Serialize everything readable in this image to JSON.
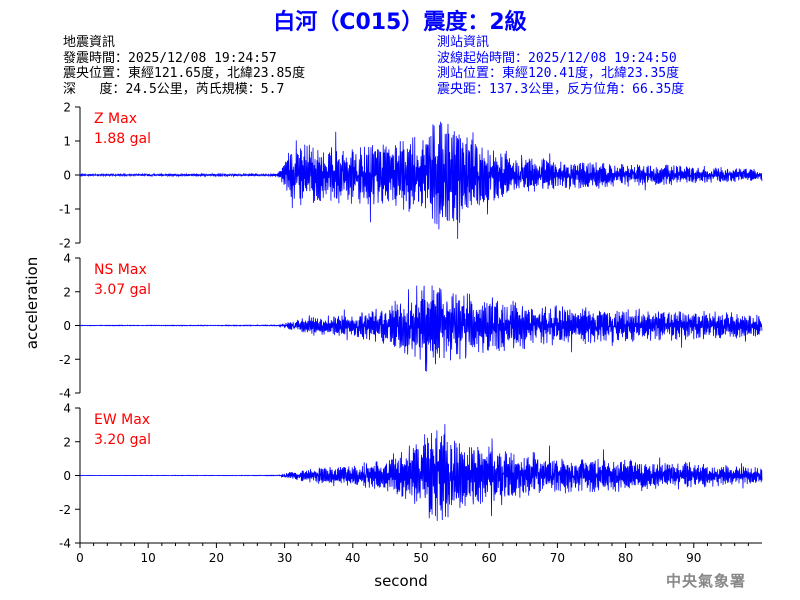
{
  "title": "白河（C015）震度：2級",
  "quake_info": {
    "heading": "地震資訊",
    "origin_time": "發震時間：2025/12/08 19:24:57",
    "epicenter": "震央位置：東經121.65度，北緯23.85度",
    "depth_magnitude": "深   度：24.5公里，芮氏規模：5.7"
  },
  "station_info": {
    "heading": "測站資訊",
    "wave_start": "波線起始時間：2025/12/08 19:24:50",
    "location": "測站位置：東經120.41度，北緯23.35度",
    "distance_azimuth": "震央距：137.3公里，反方位角：66.35度"
  },
  "watermark": "中央氣象署",
  "colors": {
    "trace": "#0000ff",
    "label": "#ff0000",
    "axis": "#000000"
  },
  "chart_data": {
    "type": "line",
    "xlabel": "second",
    "ylabel": "acceleration",
    "xlim": [
      0,
      100
    ],
    "xticks": [
      0,
      10,
      20,
      30,
      40,
      50,
      60,
      70,
      80,
      90
    ],
    "xtick_labels": [
      "0",
      "10",
      "20",
      "30",
      "40",
      "50",
      "60",
      "70",
      "80",
      "90"
    ],
    "panels": [
      {
        "name": "Z Max",
        "value_label": "1.88 gal",
        "max_gal": 1.88,
        "ylim": [
          -2,
          2
        ],
        "yticks": [
          2,
          1,
          0,
          -1,
          -2
        ],
        "ytick_labels": [
          "2",
          "1",
          "0",
          "-1",
          "-2"
        ],
        "envelope": {
          "x": [
            0,
            29,
            30,
            31,
            35,
            40,
            45,
            50,
            53,
            56,
            60,
            65,
            70,
            80,
            90,
            100
          ],
          "y": [
            0.03,
            0.04,
            0.4,
            1.1,
            0.85,
            0.85,
            1.0,
            1.3,
            1.85,
            1.4,
            0.85,
            0.6,
            0.45,
            0.35,
            0.28,
            0.2
          ]
        }
      },
      {
        "name": "NS Max",
        "value_label": "3.07 gal",
        "max_gal": 3.07,
        "ylim": [
          -4,
          4
        ],
        "yticks": [
          4,
          2,
          0,
          -2,
          -4
        ],
        "ytick_labels": [
          "4",
          "2",
          "0",
          "-2",
          "-4"
        ],
        "envelope": {
          "x": [
            0,
            29,
            30,
            33,
            40,
            45,
            48,
            51,
            55,
            60,
            65,
            70,
            80,
            90,
            100
          ],
          "y": [
            0.02,
            0.03,
            0.15,
            0.5,
            0.7,
            1.2,
            2.0,
            3.0,
            2.2,
            1.8,
            1.4,
            1.2,
            1.0,
            0.9,
            0.7
          ]
        }
      },
      {
        "name": "EW Max",
        "value_label": "3.20 gal",
        "max_gal": 3.2,
        "ylim": [
          -4,
          4
        ],
        "yticks": [
          4,
          2,
          0,
          -2,
          -4
        ],
        "ytick_labels": [
          "4",
          "2",
          "0",
          "-2",
          "-4"
        ],
        "envelope": {
          "x": [
            0,
            29,
            30,
            33,
            40,
            45,
            48,
            52,
            55,
            60,
            65,
            70,
            80,
            90,
            100
          ],
          "y": [
            0.01,
            0.02,
            0.12,
            0.45,
            0.65,
            1.1,
            1.8,
            3.1,
            2.2,
            1.8,
            1.3,
            1.1,
            1.0,
            0.8,
            0.5
          ]
        }
      }
    ]
  }
}
